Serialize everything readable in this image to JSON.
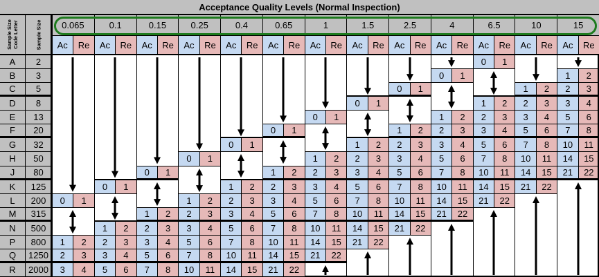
{
  "title": "Acceptance Quality Levels (Normal Inspection)",
  "header": {
    "code_letter_label": "Sample Size\nCode Letter",
    "sample_size_label": "Sample Size",
    "ac_label": "Ac",
    "re_label": "Re"
  },
  "colors": {
    "header_gray": "#c0c0c0",
    "ac_blue": "#c5d9f1",
    "re_pink": "#e6b9b8",
    "highlight_oval_green": "#1e7b1e"
  },
  "aql_levels": [
    "0.065",
    "0.1",
    "0.15",
    "0.25",
    "0.4",
    "0.65",
    "1",
    "1.5",
    "2.5",
    "4",
    "6.5",
    "10",
    "15"
  ],
  "rows": [
    {
      "letter": "A",
      "size": "2"
    },
    {
      "letter": "B",
      "size": "3"
    },
    {
      "letter": "C",
      "size": "5"
    },
    {
      "letter": "D",
      "size": "8"
    },
    {
      "letter": "E",
      "size": "13"
    },
    {
      "letter": "F",
      "size": "20"
    },
    {
      "letter": "G",
      "size": "32"
    },
    {
      "letter": "H",
      "size": "50"
    },
    {
      "letter": "J",
      "size": "80"
    },
    {
      "letter": "K",
      "size": "125"
    },
    {
      "letter": "L",
      "size": "200"
    },
    {
      "letter": "M",
      "size": "315"
    },
    {
      "letter": "N",
      "size": "500"
    },
    {
      "letter": "P",
      "size": "800"
    },
    {
      "letter": "Q",
      "size": "1250"
    },
    {
      "letter": "R",
      "size": "2000"
    }
  ],
  "thick_separators_after_rows": [
    "C",
    "F",
    "J",
    "M",
    "Q"
  ],
  "table": {
    "0.065": [
      "down",
      "down",
      "down",
      "down",
      "down",
      "down",
      "down",
      "down",
      "down",
      "down",
      [
        0,
        1
      ],
      "both",
      "both",
      [
        1,
        2
      ],
      [
        2,
        3
      ],
      [
        3,
        4
      ]
    ],
    "0.1": [
      "down",
      "down",
      "down",
      "down",
      "down",
      "down",
      "down",
      "down",
      "down",
      [
        0,
        1
      ],
      "both",
      "both",
      [
        1,
        2
      ],
      [
        2,
        3
      ],
      [
        3,
        4
      ],
      [
        5,
        6
      ]
    ],
    "0.15": [
      "down",
      "down",
      "down",
      "down",
      "down",
      "down",
      "down",
      "down",
      [
        0,
        1
      ],
      "both",
      "both",
      [
        1,
        2
      ],
      [
        2,
        3
      ],
      [
        3,
        4
      ],
      [
        5,
        6
      ],
      [
        7,
        8
      ]
    ],
    "0.25": [
      "down",
      "down",
      "down",
      "down",
      "down",
      "down",
      "down",
      [
        0,
        1
      ],
      "both",
      "both",
      [
        1,
        2
      ],
      [
        2,
        3
      ],
      [
        3,
        4
      ],
      [
        5,
        6
      ],
      [
        7,
        8
      ],
      [
        10,
        11
      ]
    ],
    "0.4": [
      "down",
      "down",
      "down",
      "down",
      "down",
      "down",
      [
        0,
        1
      ],
      "both",
      "both",
      [
        1,
        2
      ],
      [
        2,
        3
      ],
      [
        3,
        4
      ],
      [
        5,
        6
      ],
      [
        7,
        8
      ],
      [
        10,
        11
      ],
      [
        14,
        15
      ]
    ],
    "0.65": [
      "down",
      "down",
      "down",
      "down",
      "down",
      [
        0,
        1
      ],
      "both",
      "both",
      [
        1,
        2
      ],
      [
        2,
        3
      ],
      [
        3,
        4
      ],
      [
        5,
        6
      ],
      [
        7,
        8
      ],
      [
        10,
        11
      ],
      [
        14,
        15
      ],
      [
        21,
        22
      ]
    ],
    "1": [
      "down",
      "down",
      "down",
      "down",
      [
        0,
        1
      ],
      "both",
      "both",
      [
        1,
        2
      ],
      [
        2,
        3
      ],
      [
        3,
        4
      ],
      [
        5,
        6
      ],
      [
        7,
        8
      ],
      [
        10,
        11
      ],
      [
        14,
        15
      ],
      [
        21,
        22
      ],
      "up"
    ],
    "1.5": [
      "down",
      "down",
      "down",
      [
        0,
        1
      ],
      "both",
      "both",
      [
        1,
        2
      ],
      [
        2,
        3
      ],
      [
        3,
        4
      ],
      [
        5,
        6
      ],
      [
        7,
        8
      ],
      [
        10,
        11
      ],
      [
        14,
        15
      ],
      [
        21,
        22
      ],
      "up",
      "up"
    ],
    "2.5": [
      "down",
      "down",
      [
        0,
        1
      ],
      "both",
      "both",
      [
        1,
        2
      ],
      [
        2,
        3
      ],
      [
        3,
        4
      ],
      [
        5,
        6
      ],
      [
        7,
        8
      ],
      [
        10,
        11
      ],
      [
        14,
        15
      ],
      [
        21,
        22
      ],
      "up",
      "up",
      "up"
    ],
    "4": [
      "down",
      [
        0,
        1
      ],
      "both",
      "both",
      [
        1,
        2
      ],
      [
        2,
        3
      ],
      [
        3,
        4
      ],
      [
        5,
        6
      ],
      [
        7,
        8
      ],
      [
        10,
        11
      ],
      [
        14,
        15
      ],
      [
        21,
        22
      ],
      "up",
      "up",
      "up",
      "up"
    ],
    "6.5": [
      [
        0,
        1
      ],
      "both",
      "both",
      [
        1,
        2
      ],
      [
        2,
        3
      ],
      [
        3,
        4
      ],
      [
        5,
        6
      ],
      [
        7,
        8
      ],
      [
        10,
        11
      ],
      [
        14,
        15
      ],
      [
        21,
        22
      ],
      "up",
      "up",
      "up",
      "up",
      "up"
    ],
    "10": [
      "down",
      "down",
      [
        1,
        2
      ],
      [
        2,
        3
      ],
      [
        3,
        4
      ],
      [
        5,
        6
      ],
      [
        7,
        8
      ],
      [
        10,
        11
      ],
      [
        14,
        15
      ],
      [
        21,
        22
      ],
      "up",
      "up",
      "up",
      "up",
      "up",
      "up"
    ],
    "15": [
      "down",
      [
        1,
        2
      ],
      [
        2,
        3
      ],
      [
        3,
        4
      ],
      [
        5,
        6
      ],
      [
        7,
        8
      ],
      [
        10,
        11
      ],
      [
        14,
        15
      ],
      [
        21,
        22
      ],
      "up",
      "up",
      "up",
      "up",
      "up",
      "up",
      "up"
    ]
  },
  "icons": {
    "down": "arrow-down-icon",
    "up": "arrow-up-icon",
    "both": "arrow-up-down-icon"
  }
}
